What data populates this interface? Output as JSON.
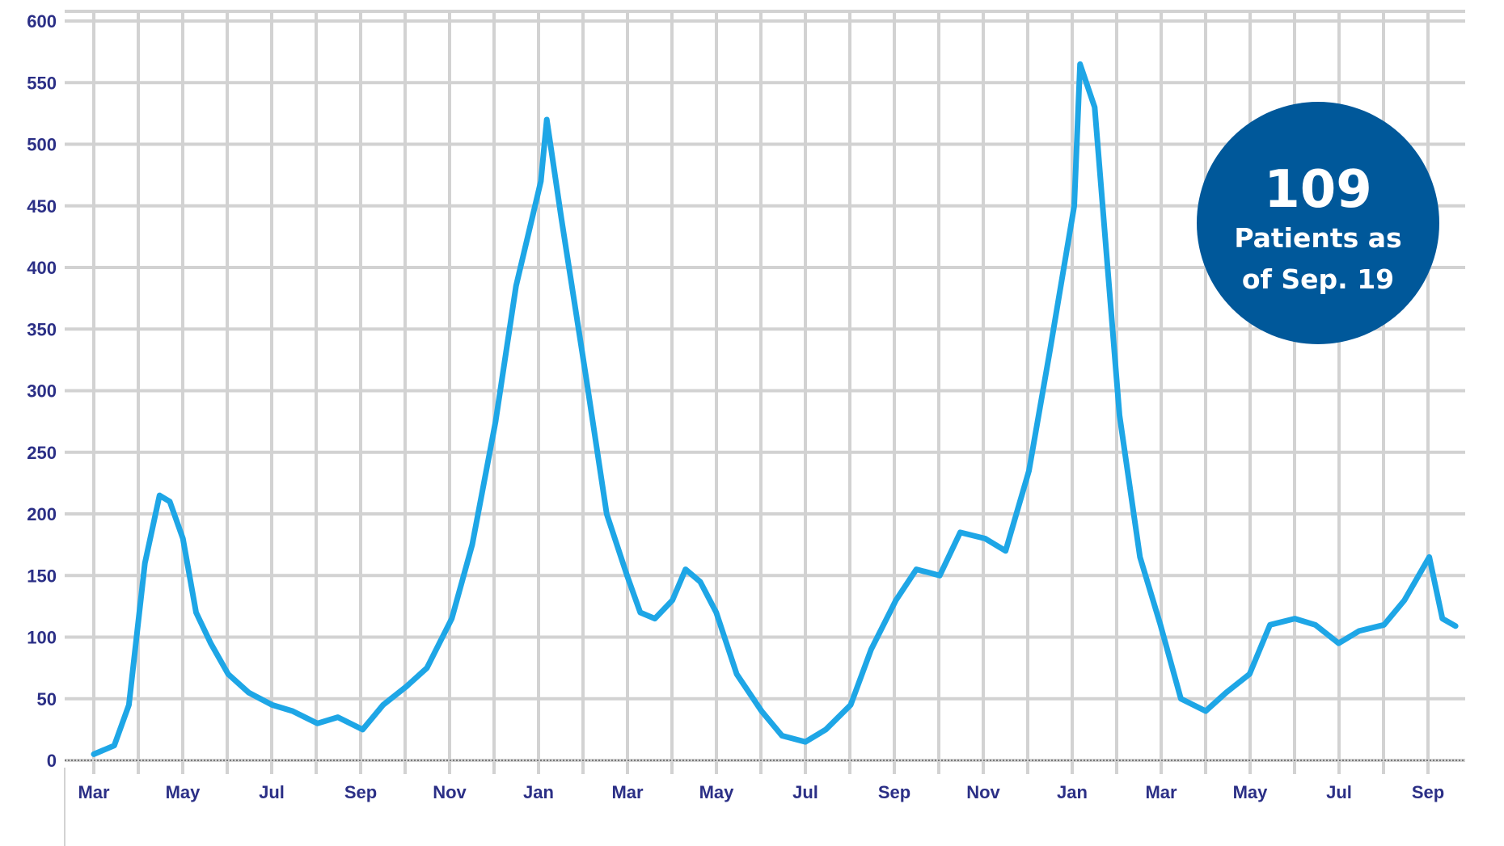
{
  "chart_data": {
    "type": "line",
    "title": "",
    "xlabel": "",
    "ylabel": "",
    "ylim": [
      0,
      600
    ],
    "y_ticks": [
      0,
      50,
      100,
      150,
      200,
      250,
      300,
      350,
      400,
      450,
      500,
      550,
      600
    ],
    "x_tick_labels": [
      "Mar",
      "May",
      "Jul",
      "Sep",
      "Nov",
      "Jan",
      "Mar",
      "May",
      "Jul",
      "Sep",
      "Nov",
      "Jan",
      "Mar",
      "May",
      "Jul",
      "Sep"
    ],
    "grid": true,
    "legend": "none",
    "series": [
      {
        "color": "#1ea6e6",
        "x": [
          "2020-03-01",
          "2020-03-15",
          "2020-03-25",
          "2020-04-05",
          "2020-04-15",
          "2020-04-22",
          "2020-05-01",
          "2020-05-10",
          "2020-05-20",
          "2020-06-01",
          "2020-06-15",
          "2020-07-01",
          "2020-07-15",
          "2020-08-01",
          "2020-08-15",
          "2020-09-01",
          "2020-09-15",
          "2020-10-01",
          "2020-10-15",
          "2020-11-01",
          "2020-11-15",
          "2020-12-01",
          "2020-12-15",
          "2021-01-01",
          "2021-01-05",
          "2021-01-15",
          "2021-02-01",
          "2021-02-15",
          "2021-03-01",
          "2021-03-10",
          "2021-03-20",
          "2021-04-01",
          "2021-04-10",
          "2021-04-20",
          "2021-05-01",
          "2021-05-15",
          "2021-06-01",
          "2021-06-15",
          "2021-07-01",
          "2021-07-15",
          "2021-08-01",
          "2021-08-15",
          "2021-09-01",
          "2021-09-15",
          "2021-10-01",
          "2021-10-15",
          "2021-11-01",
          "2021-11-15",
          "2021-12-01",
          "2021-12-15",
          "2022-01-01",
          "2022-01-05",
          "2022-01-15",
          "2022-02-01",
          "2022-02-15",
          "2022-03-01",
          "2022-03-15",
          "2022-04-01",
          "2022-04-15",
          "2022-05-01",
          "2022-05-15",
          "2022-06-01",
          "2022-06-15",
          "2022-07-01",
          "2022-07-15",
          "2022-08-01",
          "2022-08-15",
          "2022-09-01",
          "2022-09-10",
          "2022-09-19"
        ],
        "values": [
          5,
          12,
          45,
          160,
          215,
          210,
          180,
          120,
          95,
          70,
          55,
          45,
          40,
          30,
          35,
          25,
          45,
          60,
          75,
          115,
          175,
          275,
          385,
          470,
          520,
          440,
          310,
          200,
          150,
          120,
          115,
          130,
          155,
          145,
          120,
          70,
          40,
          20,
          15,
          25,
          45,
          90,
          130,
          155,
          150,
          185,
          180,
          170,
          235,
          330,
          450,
          565,
          530,
          280,
          165,
          110,
          50,
          40,
          55,
          70,
          110,
          115,
          110,
          95,
          105,
          110,
          130,
          165,
          115,
          109
        ]
      }
    ],
    "annotation": {
      "value": "109",
      "line1": "Patients as",
      "line2": "of Sep. 19",
      "color": "#00589a"
    }
  }
}
